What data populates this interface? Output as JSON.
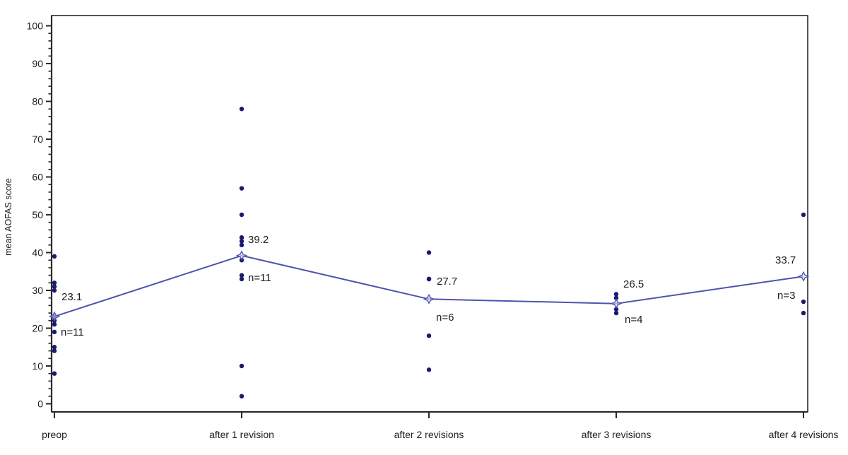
{
  "chart_data": {
    "type": "scatter",
    "subtype": "individual points with mean profile line",
    "title": "",
    "xlabel": "",
    "ylabel": "mean AOFAS score",
    "ylim": [
      0,
      100
    ],
    "y_major_step": 10,
    "y_minor_step": 2,
    "grid": "off",
    "legend": "none",
    "categories": [
      "preop",
      "after 1 revision",
      "after 2 revisions",
      "after 3 revisions",
      "after 4 revisions"
    ],
    "groups": [
      {
        "category": "preop",
        "n": 11,
        "mean": 23.1,
        "mean_label": "23.1",
        "n_label": "n=11",
        "points": [
          39,
          32,
          31,
          30,
          23,
          22,
          21,
          19,
          15,
          14,
          8
        ]
      },
      {
        "category": "after 1 revision",
        "n": 11,
        "mean": 39.2,
        "mean_label": "39.2",
        "n_label": "n=11",
        "points": [
          78,
          57,
          50,
          44,
          43,
          42,
          38,
          34,
          33,
          10,
          2
        ]
      },
      {
        "category": "after 2 revisions",
        "n": 6,
        "mean": 27.7,
        "mean_label": "27.7",
        "n_label": "n=6",
        "points": [
          40,
          33,
          33,
          33,
          18,
          9
        ]
      },
      {
        "category": "after 3 revisions",
        "n": 4,
        "mean": 26.5,
        "mean_label": "26.5",
        "n_label": "n=4",
        "points": [
          29,
          28,
          25,
          24
        ]
      },
      {
        "category": "after 4 revisions",
        "n": 3,
        "mean": 33.7,
        "mean_label": "33.7",
        "n_label": "n=3",
        "points": [
          50,
          27,
          24
        ]
      }
    ],
    "series": [
      {
        "name": "mean AOFAS score",
        "values": [
          23.1,
          39.2,
          27.7,
          26.5,
          33.7
        ]
      }
    ],
    "colors": {
      "point": "#1a1a70",
      "mean_line": "#5053ae",
      "mean_marker_stroke": "#5053ae",
      "axis": "#2a2a2a",
      "text": "#1c1c1c",
      "background": "#ffffff"
    }
  }
}
